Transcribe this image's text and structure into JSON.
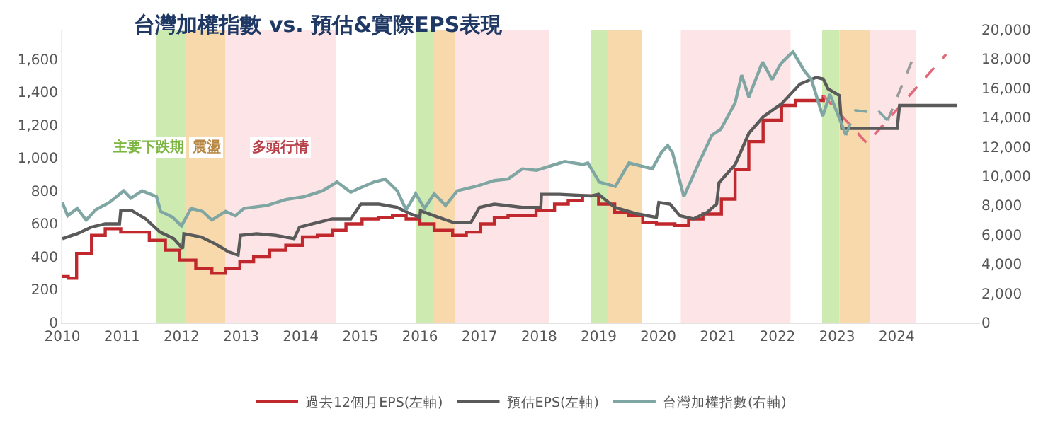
{
  "chart_data": {
    "type": "line",
    "title": "台灣加權指數 vs. 預估&實際EPS表現",
    "xlim": [
      2010,
      2025.4
    ],
    "xticks": [
      2010,
      2011,
      2012,
      2013,
      2014,
      2015,
      2016,
      2017,
      2018,
      2019,
      2020,
      2021,
      2022,
      2023,
      2024
    ],
    "ylim": [
      0,
      1780
    ],
    "yticks": [
      0,
      200,
      400,
      600,
      800,
      {
        "value": 1000,
        "label": "1,000"
      },
      {
        "value": 1200,
        "label": "1,200"
      },
      {
        "value": 1400,
        "label": "1,400"
      },
      {
        "value": 1600,
        "label": "1,600"
      }
    ],
    "y2lim": [
      0,
      20000
    ],
    "y2ticks": [
      0,
      {
        "value": 2000,
        "label": "2,000"
      },
      {
        "value": 4000,
        "label": "4,000"
      },
      {
        "value": 6000,
        "label": "6,000"
      },
      {
        "value": 8000,
        "label": "8,000"
      },
      {
        "value": 10000,
        "label": "10,000"
      },
      {
        "value": 12000,
        "label": "12,000"
      },
      {
        "value": 14000,
        "label": "14,000"
      },
      {
        "value": 16000,
        "label": "16,000"
      },
      {
        "value": 18000,
        "label": "18,000"
      },
      {
        "value": 20000,
        "label": "20,000"
      }
    ],
    "grid": false,
    "legend": "bottom",
    "bands": [
      {
        "axis": "x",
        "from": 2011.58,
        "to": 2012.08,
        "color": "#cdeab0",
        "label": "主要下跌期"
      },
      {
        "axis": "x",
        "from": 2012.08,
        "to": 2012.74,
        "color": "#f8d9ac",
        "label": "震盪"
      },
      {
        "axis": "x",
        "from": 2012.74,
        "to": 2014.59,
        "color": "#fde4e6",
        "label": "多頭行情"
      },
      {
        "axis": "x",
        "from": 2015.93,
        "to": 2016.22,
        "color": "#cdeab0"
      },
      {
        "axis": "x",
        "from": 2016.22,
        "to": 2016.59,
        "color": "#f8d9ac"
      },
      {
        "axis": "x",
        "from": 2016.59,
        "to": 2018.17,
        "color": "#fde4e6"
      },
      {
        "axis": "x",
        "from": 2018.87,
        "to": 2019.15,
        "color": "#cdeab0"
      },
      {
        "axis": "x",
        "from": 2019.15,
        "to": 2019.72,
        "color": "#f8d9ac"
      },
      {
        "axis": "x",
        "from": 2020.38,
        "to": 2022.22,
        "color": "#fde4e6"
      },
      {
        "axis": "x",
        "from": 2022.75,
        "to": 2023.04,
        "color": "#cdeab0"
      },
      {
        "axis": "x",
        "from": 2023.04,
        "to": 2023.56,
        "color": "#f8d9ac"
      },
      {
        "axis": "x",
        "from": 2023.56,
        "to": 2024.32,
        "color": "#fde4e6"
      }
    ],
    "series": [
      {
        "name": "過去12個月EPS(左軸)",
        "type": "step",
        "color": "#c0282d",
        "x": [
          2010.0,
          2010.1,
          2010.24,
          2010.49,
          2010.72,
          2010.98,
          2011.46,
          2011.73,
          2011.97,
          2012.24,
          2012.51,
          2012.74,
          2012.98,
          2013.21,
          2013.48,
          2013.75,
          2014.03,
          2014.28,
          2014.53,
          2014.76,
          2015.03,
          2015.31,
          2015.54,
          2015.77,
          2016.0,
          2016.24,
          2016.55,
          2016.78,
          2017.02,
          2017.25,
          2017.48,
          2017.72,
          2017.95,
          2018.26,
          2018.49,
          2018.73,
          2019.0,
          2019.27,
          2019.5,
          2019.74,
          2019.97,
          2020.28,
          2020.51,
          2020.75,
          2021.06,
          2021.29,
          2021.52,
          2021.76,
          2022.07,
          2022.3,
          2022.77
        ],
        "values": [
          280,
          270,
          420,
          530,
          570,
          550,
          500,
          440,
          380,
          330,
          300,
          330,
          370,
          400,
          440,
          470,
          520,
          530,
          560,
          600,
          630,
          640,
          650,
          630,
          600,
          560,
          530,
          550,
          600,
          640,
          650,
          650,
          680,
          720,
          740,
          770,
          720,
          670,
          650,
          610,
          600,
          590,
          630,
          660,
          750,
          930,
          1100,
          1230,
          1320,
          1350,
          1380
        ]
      },
      {
        "color": "#e06a7c",
        "line_style": "dashed",
        "x": [
          2022.77,
          2023.5,
          2024.83
        ],
        "values": [
          1380,
          1090,
          1630
        ]
      },
      {
        "name": "預估EPS(左軸)",
        "color": "#5a5a5a",
        "x": [
          2010.0,
          2010.25,
          2010.49,
          2010.72,
          2010.96,
          2010.98,
          2011.17,
          2011.4,
          2011.64,
          2011.87,
          2012.02,
          2012.04,
          2012.33,
          2012.56,
          2012.79,
          2012.95,
          2012.99,
          2013.26,
          2013.58,
          2013.89,
          2013.98,
          2014.2,
          2014.53,
          2014.84,
          2015.01,
          2015.31,
          2015.62,
          2015.85,
          2016.0,
          2016.01,
          2016.31,
          2016.55,
          2016.86,
          2017.0,
          2017.25,
          2017.72,
          2018.03,
          2018.04,
          2018.34,
          2018.88,
          2019.0,
          2019.27,
          2019.66,
          2019.97,
          2020.01,
          2020.2,
          2020.36,
          2020.59,
          2020.82,
          2020.98,
          2021.02,
          2021.29,
          2021.52,
          2021.76,
          2022.07,
          2022.38,
          2022.65,
          2022.77,
          2022.85,
          2023.04,
          2023.08,
          2024.01,
          2024.05,
          2025.02
        ],
        "values": [
          510,
          540,
          580,
          600,
          600,
          680,
          680,
          630,
          550,
          510,
          450,
          540,
          520,
          480,
          430,
          410,
          530,
          540,
          530,
          510,
          580,
          600,
          630,
          630,
          720,
          720,
          700,
          660,
          640,
          680,
          640,
          610,
          610,
          700,
          720,
          700,
          700,
          780,
          780,
          770,
          780,
          700,
          660,
          640,
          730,
          720,
          650,
          630,
          670,
          720,
          850,
          960,
          1150,
          1250,
          1330,
          1450,
          1490,
          1480,
          1420,
          1380,
          1180,
          1180,
          1320,
          1320
        ]
      },
      {
        "name": "台灣加權指數(右軸)",
        "axis": "y2",
        "color": "#7fa6a3",
        "x": [
          2010.0,
          2010.09,
          2010.25,
          2010.4,
          2010.56,
          2010.79,
          2011.03,
          2011.15,
          2011.34,
          2011.58,
          2011.65,
          2011.85,
          2012.0,
          2012.16,
          2012.35,
          2012.51,
          2012.74,
          2012.9,
          2013.05,
          2013.44,
          2013.75,
          2014.06,
          2014.37,
          2014.61,
          2014.84,
          2015.0,
          2015.23,
          2015.42,
          2015.62,
          2015.77,
          2015.93,
          2016.08,
          2016.24,
          2016.43,
          2016.63,
          2016.94,
          2017.25,
          2017.48,
          2017.72,
          2017.96,
          2018.43,
          2018.74,
          2018.82,
          2019.01,
          2019.28,
          2019.51,
          2019.9,
          2020.05,
          2020.16,
          2020.24,
          2020.43,
          2020.67,
          2020.9,
          2021.05,
          2021.29,
          2021.4,
          2021.52,
          2021.75,
          2021.91,
          2022.06,
          2022.26,
          2022.45,
          2022.57,
          2022.76,
          2022.88,
          2023.15
        ],
        "values": [
          8200,
          7300,
          7800,
          7000,
          7700,
          8200,
          9000,
          8500,
          9000,
          8600,
          7600,
          7200,
          6600,
          7800,
          7600,
          7000,
          7600,
          7300,
          7800,
          8000,
          8400,
          8600,
          9000,
          9600,
          8900,
          9200,
          9600,
          9800,
          9000,
          7700,
          8800,
          7800,
          8800,
          8000,
          9000,
          9300,
          9700,
          9800,
          10500,
          10400,
          11000,
          10800,
          10900,
          9600,
          9300,
          10900,
          10500,
          11600,
          12100,
          11600,
          8600,
          10800,
          12800,
          13200,
          15000,
          16900,
          15400,
          17800,
          16600,
          17700,
          18500,
          17200,
          16600,
          14100,
          15600,
          12800
        ]
      },
      {
        "axis": "y2",
        "color": "#7fa6a3",
        "line_style": "dashed",
        "x": [
          2023.15,
          2023.31,
          2023.5,
          2023.66,
          2023.85
        ],
        "values": [
          12800,
          14500,
          14400,
          14600,
          13800
        ]
      },
      {
        "axis": "y2",
        "color": "#9a9a9a",
        "line_style": "dashed",
        "x": [
          2023.85,
          2024.28
        ],
        "values": [
          13800,
          18100
        ]
      }
    ]
  }
}
